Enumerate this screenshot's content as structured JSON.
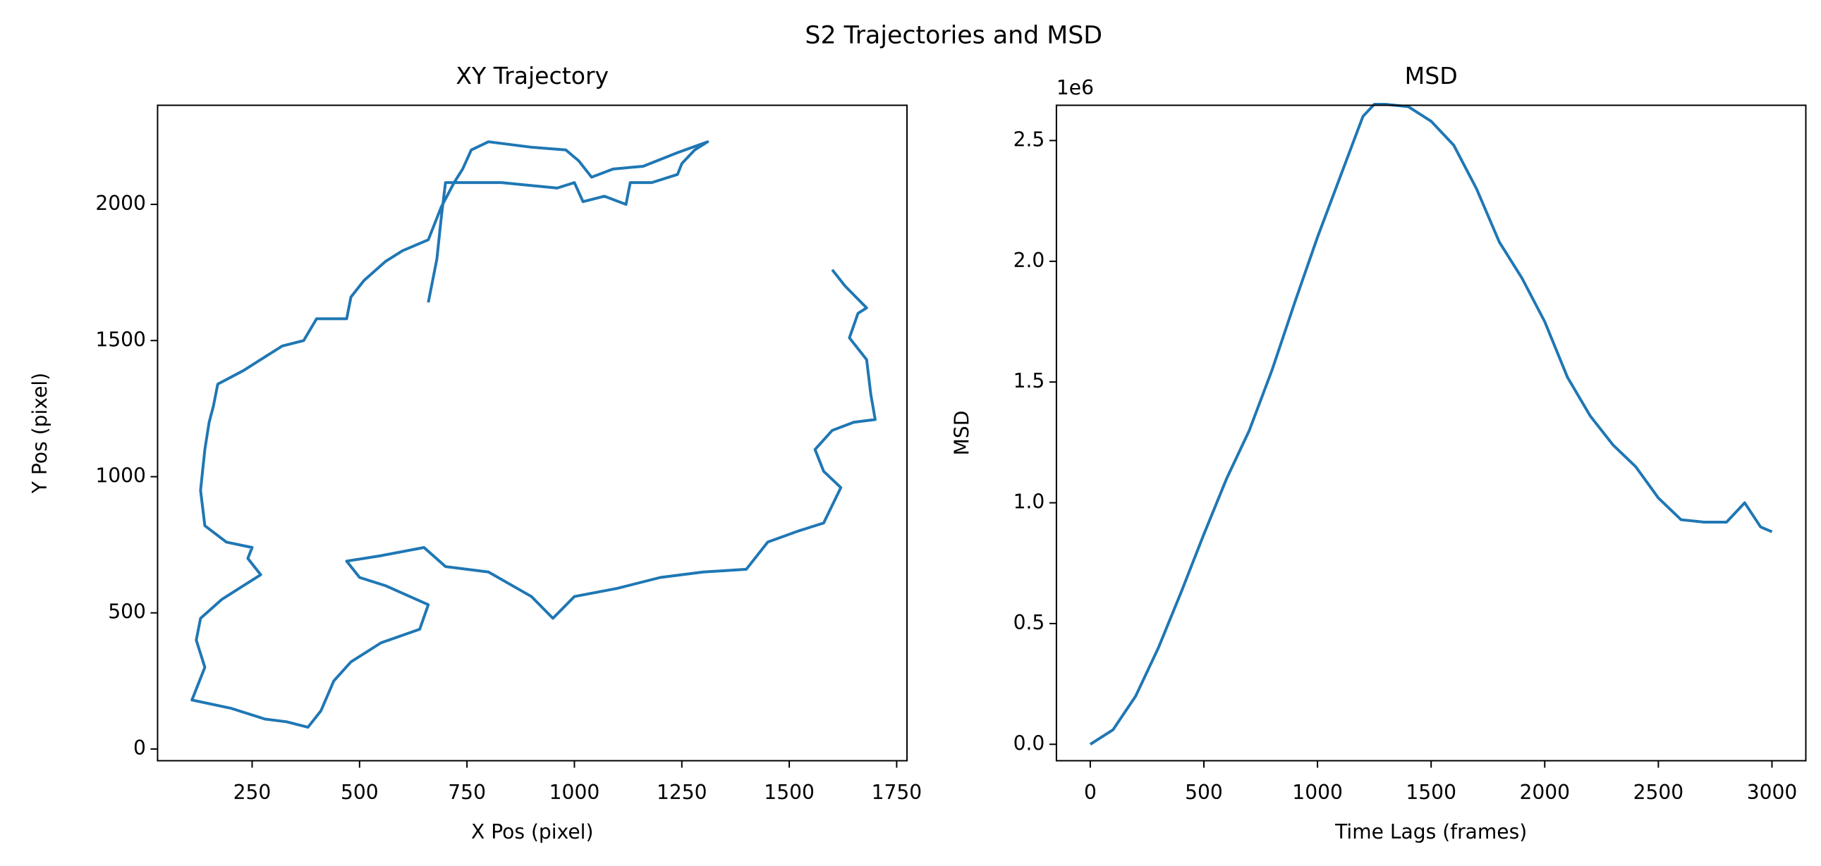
{
  "title": "S2 Trajectories and MSD",
  "chart_data": [
    {
      "type": "line",
      "title": "XY Trajectory",
      "x_label": "X Pos (pixel)",
      "y_label": "Y Pos (pixel)",
      "color": "#1f77b4",
      "xlim": [
        30,
        1774
      ],
      "ylim": [
        -43,
        2364
      ],
      "xticks": [
        250,
        500,
        750,
        1000,
        1250,
        1500,
        1750
      ],
      "yticks": [
        0,
        500,
        1000,
        1500,
        2000
      ],
      "x": [
        660,
        680,
        690,
        700,
        830,
        960,
        1000,
        1020,
        1070,
        1120,
        1130,
        1180,
        1240,
        1250,
        1280,
        1310,
        1240,
        1160,
        1090,
        1040,
        1010,
        980,
        900,
        800,
        760,
        740,
        720,
        690,
        660,
        600,
        560,
        510,
        480,
        470,
        400,
        370,
        320,
        270,
        230,
        170,
        160,
        150,
        140,
        130,
        140,
        190,
        250,
        240,
        270,
        230,
        180,
        130,
        120,
        140,
        110,
        200,
        280,
        330,
        380,
        410,
        440,
        480,
        550,
        640,
        660,
        560,
        500,
        470,
        550,
        650,
        700,
        800,
        900,
        950,
        1000,
        1100,
        1200,
        1300,
        1400,
        1450,
        1520,
        1580,
        1620,
        1580,
        1560,
        1600,
        1650,
        1700,
        1690,
        1680,
        1640,
        1660,
        1680,
        1630,
        1600
      ],
      "y": [
        1640,
        1800,
        1950,
        2080,
        2080,
        2060,
        2080,
        2010,
        2030,
        2000,
        2080,
        2080,
        2110,
        2150,
        2200,
        2230,
        2190,
        2140,
        2130,
        2100,
        2160,
        2200,
        2210,
        2230,
        2200,
        2130,
        2080,
        1990,
        1870,
        1830,
        1790,
        1720,
        1660,
        1580,
        1580,
        1500,
        1480,
        1430,
        1390,
        1340,
        1260,
        1200,
        1100,
        950,
        820,
        760,
        740,
        700,
        640,
        600,
        550,
        480,
        400,
        300,
        180,
        150,
        110,
        100,
        80,
        140,
        250,
        320,
        390,
        440,
        530,
        600,
        630,
        690,
        710,
        740,
        670,
        650,
        560,
        480,
        560,
        590,
        630,
        650,
        660,
        760,
        800,
        830,
        960,
        1020,
        1100,
        1170,
        1200,
        1210,
        1300,
        1430,
        1510,
        1600,
        1620,
        1700,
        1760
      ]
    },
    {
      "type": "line",
      "title": "MSD",
      "x_label": "Time Lags (frames)",
      "y_label": "MSD",
      "y_offset_label": "1e6",
      "color": "#1f77b4",
      "xlim": [
        -149,
        3149
      ],
      "ylim": [
        -0.068,
        2.646
      ],
      "xticks": [
        0,
        500,
        1000,
        1500,
        2000,
        2500,
        3000
      ],
      "yticks": [
        {
          "value": 0,
          "label": "0.0"
        },
        0.5,
        {
          "value": 1,
          "label": "1.0"
        },
        1.5,
        {
          "value": 2,
          "label": "2.0"
        },
        2.5
      ],
      "x": [
        0,
        100,
        200,
        300,
        400,
        500,
        600,
        700,
        800,
        900,
        1000,
        1100,
        1200,
        1250,
        1300,
        1400,
        1500,
        1600,
        1700,
        1800,
        1900,
        2000,
        2100,
        2200,
        2300,
        2400,
        2500,
        2600,
        2700,
        2800,
        2880,
        2950,
        3000
      ],
      "y": [
        0,
        0.06,
        0.2,
        0.4,
        0.63,
        0.87,
        1.1,
        1.3,
        1.55,
        1.83,
        2.1,
        2.35,
        2.6,
        2.65,
        2.65,
        2.64,
        2.58,
        2.48,
        2.3,
        2.08,
        1.93,
        1.75,
        1.52,
        1.36,
        1.24,
        1.15,
        1.02,
        0.93,
        0.92,
        0.92,
        1.0,
        0.9,
        0.88
      ]
    }
  ]
}
